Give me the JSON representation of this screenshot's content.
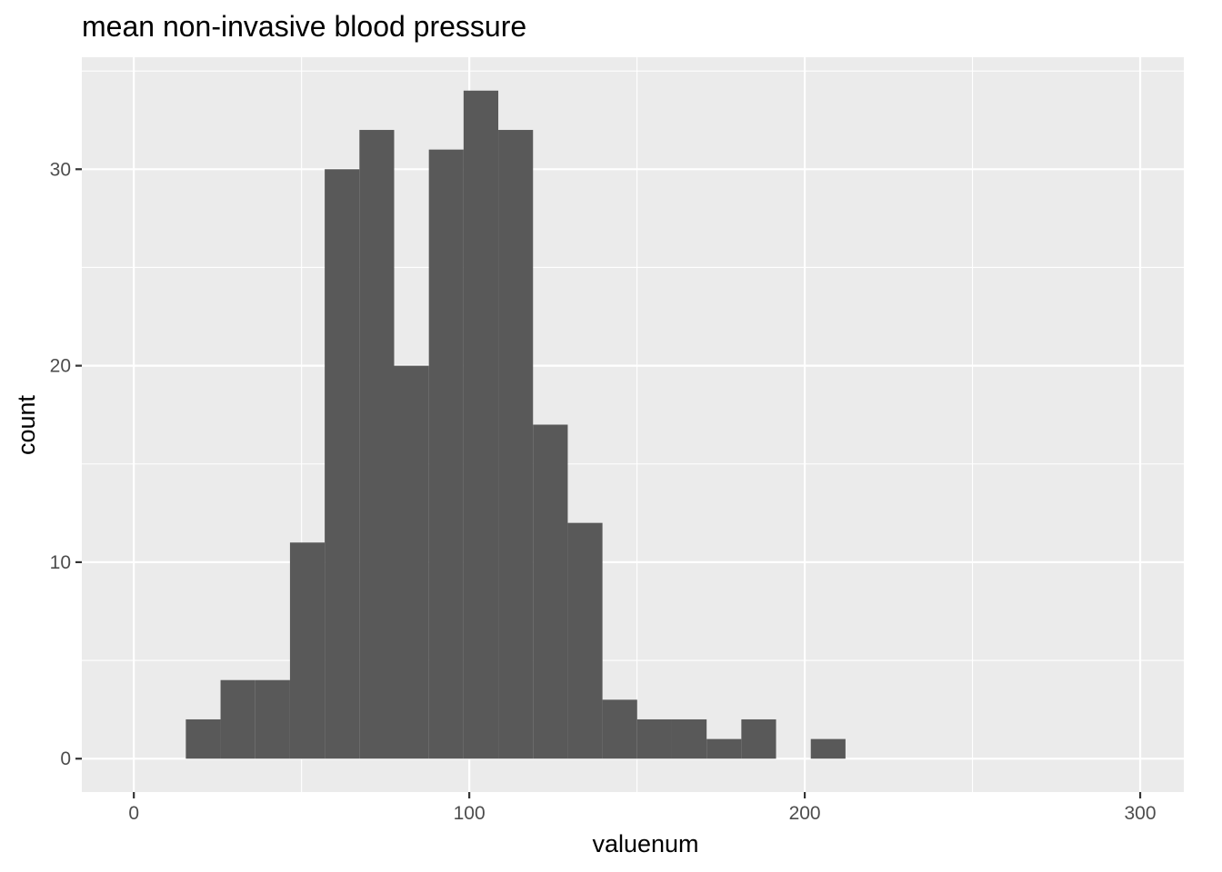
{
  "chart_data": {
    "type": "bar",
    "title": "mean non-invasive blood pressure",
    "xlabel": "valuenum",
    "ylabel": "count",
    "xlim": [
      -15.5,
      313
    ],
    "ylim": [
      -1.7,
      35.7
    ],
    "x_ticks": [
      0,
      100,
      200,
      300
    ],
    "y_ticks": [
      0,
      10,
      20,
      30
    ],
    "x_tick_labels": [
      "0",
      "100",
      "200",
      "300"
    ],
    "y_tick_labels": [
      "0",
      "10",
      "20",
      "30"
    ],
    "grid": true,
    "bin_width": 10.35,
    "bins": [
      {
        "x0": 15.5,
        "count": 2
      },
      {
        "x0": 25.85,
        "count": 4
      },
      {
        "x0": 36.2,
        "count": 4
      },
      {
        "x0": 46.55,
        "count": 11
      },
      {
        "x0": 56.9,
        "count": 30
      },
      {
        "x0": 67.25,
        "count": 32
      },
      {
        "x0": 77.6,
        "count": 20
      },
      {
        "x0": 87.95,
        "count": 31
      },
      {
        "x0": 98.3,
        "count": 34
      },
      {
        "x0": 108.65,
        "count": 32
      },
      {
        "x0": 119.0,
        "count": 17
      },
      {
        "x0": 129.35,
        "count": 12
      },
      {
        "x0": 139.7,
        "count": 3
      },
      {
        "x0": 150.05,
        "count": 2
      },
      {
        "x0": 160.4,
        "count": 2
      },
      {
        "x0": 170.75,
        "count": 1
      },
      {
        "x0": 181.1,
        "count": 2
      },
      {
        "x0": 191.45,
        "count": 0
      },
      {
        "x0": 201.8,
        "count": 1
      }
    ],
    "colors": {
      "bar": "#595959",
      "panel": "#ebebeb",
      "grid": "#ffffff"
    }
  }
}
